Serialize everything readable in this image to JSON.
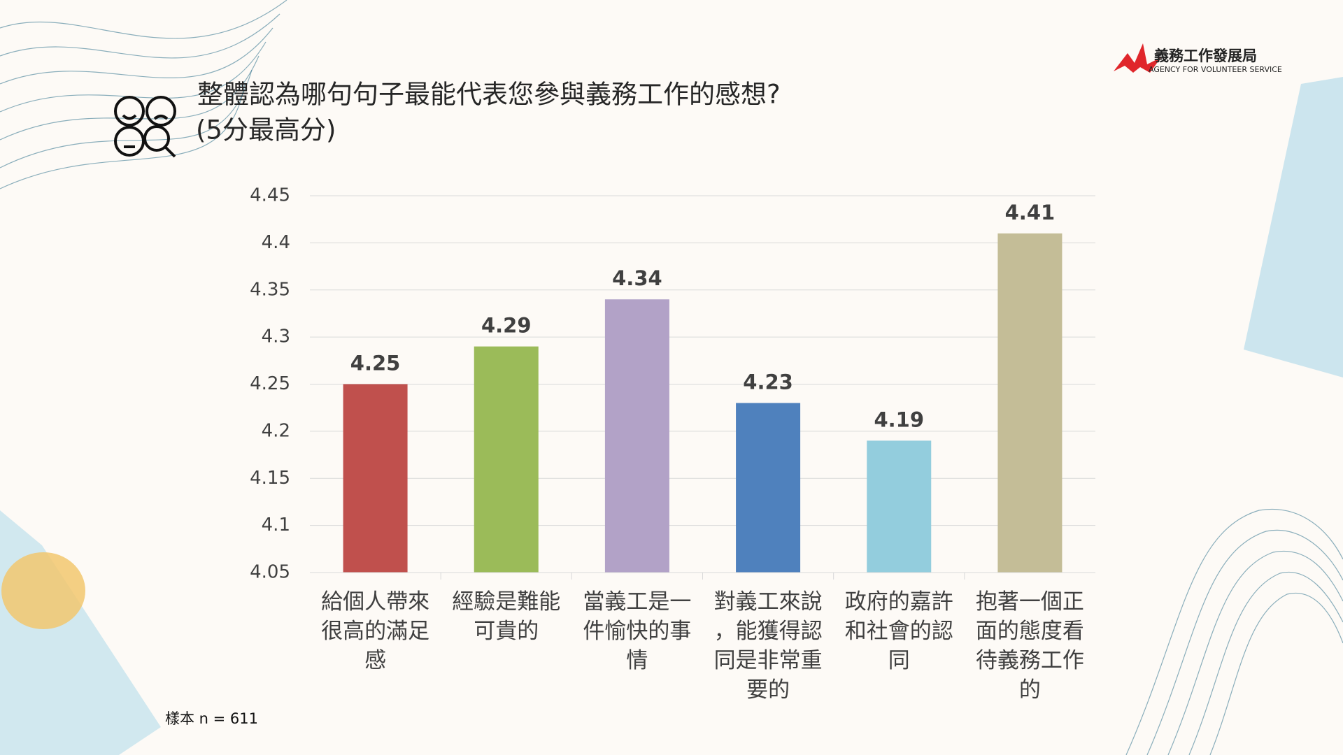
{
  "chart_data": {
    "type": "bar",
    "title": "整體認為哪句句子最能代表您參與義務工作的感想?",
    "subtitle": "(5分最高分)",
    "categories": [
      "給個人帶來很高的滿足感",
      "經驗是難能可貴的",
      "當義工是一件愉快的事情",
      "對義工來說，能獲得認同是非常重要的",
      "政府的嘉許和社會的認同",
      "抱著一個正面的態度看待義務工作的"
    ],
    "values": [
      4.25,
      4.29,
      4.34,
      4.23,
      4.19,
      4.41
    ],
    "colors": [
      "#c0504d",
      "#9bbb59",
      "#b2a2c7",
      "#4f81bd",
      "#93cddd",
      "#c4bd97"
    ],
    "ylim": [
      4.05,
      4.45
    ],
    "yticks": [
      4.05,
      4.1,
      4.15,
      4.2,
      4.25,
      4.3,
      4.35,
      4.4,
      4.45
    ],
    "grid": true,
    "note": "樣本 n = 611"
  },
  "logo": {
    "name": "義務工作發展局",
    "english": "AGENCY FOR VOLUNTEER SERVICE"
  }
}
